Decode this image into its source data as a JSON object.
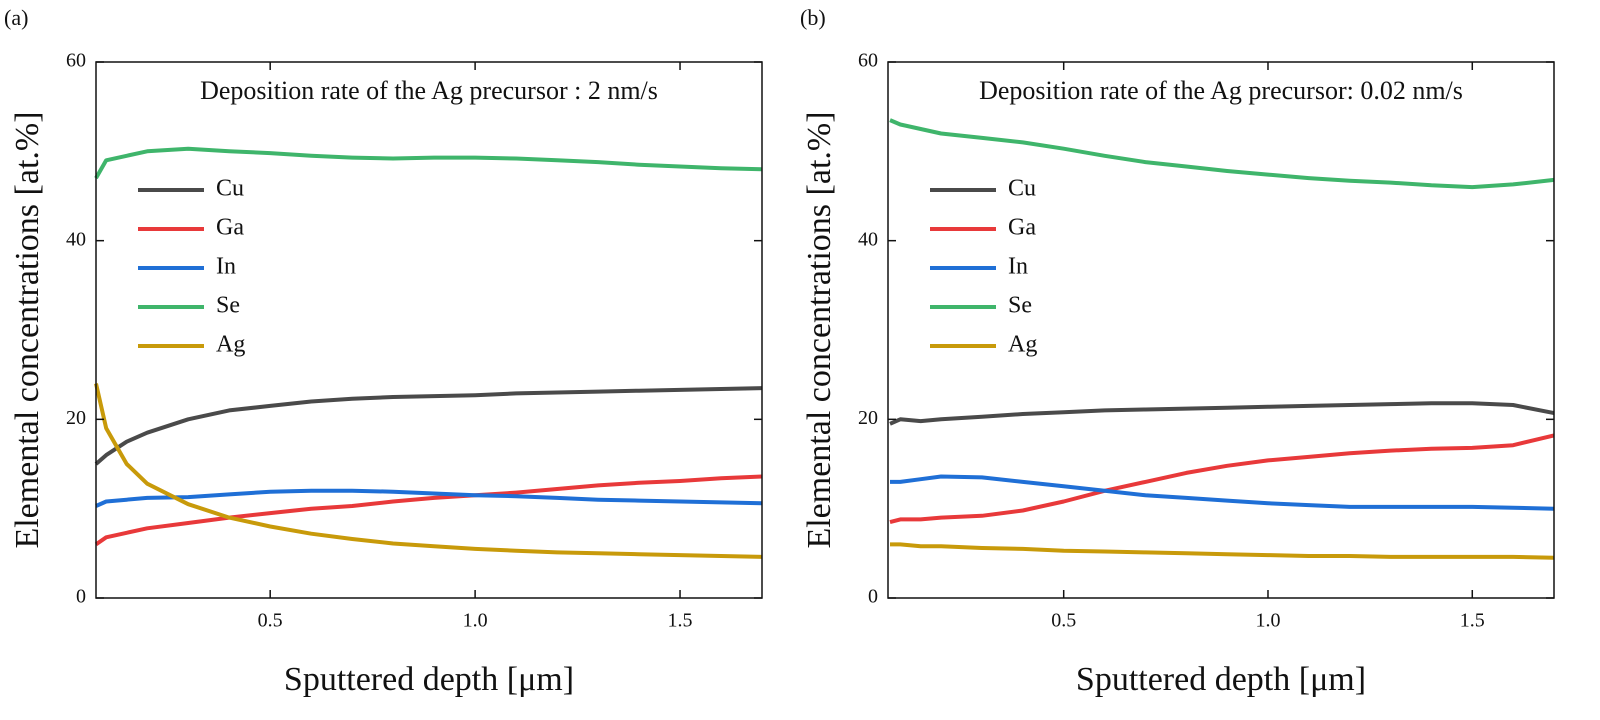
{
  "chart_data": [
    {
      "type": "line",
      "panel_label": "(a)",
      "annotation": "Deposition rate of the Ag precursor : 2 nm/s",
      "xlabel": "Sputtered depth [μm]",
      "ylabel": "Elemental concentrations [at.%]",
      "xlim": [
        0.075,
        1.7
      ],
      "ylim": [
        0,
        60
      ],
      "xticks": [
        0.5,
        {
          "value": 1.0,
          "label": "1.0"
        },
        1.5
      ],
      "yticks": [
        0,
        20,
        40,
        60
      ],
      "legend": "upper left",
      "x": [
        0.075,
        0.1,
        0.15,
        0.2,
        0.3,
        0.4,
        0.5,
        0.6,
        0.7,
        0.8,
        0.9,
        1.0,
        1.1,
        1.2,
        1.3,
        1.4,
        1.5,
        1.6,
        1.7
      ],
      "series": [
        {
          "name": "Cu",
          "color": "#4a4a4a",
          "values": [
            15,
            16,
            17.5,
            18.5,
            20,
            21,
            21.5,
            22,
            22.3,
            22.5,
            22.6,
            22.7,
            22.9,
            23,
            23.1,
            23.2,
            23.3,
            23.4,
            23.5
          ]
        },
        {
          "name": "Ga",
          "color": "#e8393a",
          "values": [
            6,
            6.8,
            7.3,
            7.8,
            8.4,
            9,
            9.5,
            10,
            10.3,
            10.8,
            11.2,
            11.5,
            11.8,
            12.2,
            12.6,
            12.9,
            13.1,
            13.4,
            13.6
          ]
        },
        {
          "name": "In",
          "color": "#1f6fd6",
          "values": [
            10.3,
            10.8,
            11,
            11.2,
            11.3,
            11.6,
            11.9,
            12,
            12,
            11.9,
            11.7,
            11.5,
            11.4,
            11.2,
            11,
            10.9,
            10.8,
            10.7,
            10.6
          ]
        },
        {
          "name": "Se",
          "color": "#3fb56b",
          "values": [
            47,
            49,
            49.5,
            50,
            50.3,
            50,
            49.8,
            49.5,
            49.3,
            49.2,
            49.3,
            49.3,
            49.2,
            49,
            48.8,
            48.5,
            48.3,
            48.1,
            48
          ]
        },
        {
          "name": "Ag",
          "color": "#c89a0a",
          "values": [
            24,
            19,
            15,
            12.8,
            10.5,
            9,
            8,
            7.2,
            6.6,
            6.1,
            5.8,
            5.5,
            5.3,
            5.1,
            5,
            4.9,
            4.8,
            4.7,
            4.6
          ]
        }
      ]
    },
    {
      "type": "line",
      "panel_label": "(b)",
      "annotation": "Deposition rate of the Ag precursor: 0.02 nm/s",
      "xlabel": "Sputtered depth [μm]",
      "ylabel": "Elemental concentrations [at.%]",
      "xlim": [
        0.07,
        1.7
      ],
      "ylim": [
        0,
        60
      ],
      "xticks": [
        0.5,
        {
          "value": 1.0,
          "label": "1.0"
        },
        1.5
      ],
      "yticks": [
        0,
        20,
        40,
        60
      ],
      "legend": "upper left",
      "x": [
        0.075,
        0.1,
        0.15,
        0.2,
        0.3,
        0.4,
        0.5,
        0.6,
        0.7,
        0.8,
        0.9,
        1.0,
        1.1,
        1.2,
        1.3,
        1.4,
        1.5,
        1.6,
        1.7
      ],
      "series": [
        {
          "name": "Cu",
          "color": "#4a4a4a",
          "values": [
            19.5,
            20,
            19.8,
            20,
            20.3,
            20.6,
            20.8,
            21,
            21.1,
            21.2,
            21.3,
            21.4,
            21.5,
            21.6,
            21.7,
            21.8,
            21.8,
            21.6,
            20.7
          ]
        },
        {
          "name": "Ga",
          "color": "#e8393a",
          "values": [
            8.5,
            8.8,
            8.8,
            9,
            9.2,
            9.8,
            10.8,
            12,
            13,
            14,
            14.8,
            15.4,
            15.8,
            16.2,
            16.5,
            16.7,
            16.8,
            17.1,
            18.2
          ]
        },
        {
          "name": "In",
          "color": "#1f6fd6",
          "values": [
            13,
            13,
            13.3,
            13.6,
            13.5,
            13,
            12.5,
            12,
            11.5,
            11.2,
            10.9,
            10.6,
            10.4,
            10.2,
            10.2,
            10.2,
            10.2,
            10.1,
            10
          ]
        },
        {
          "name": "Se",
          "color": "#3fb56b",
          "values": [
            53.5,
            53,
            52.5,
            52,
            51.5,
            51,
            50.3,
            49.5,
            48.8,
            48.3,
            47.8,
            47.4,
            47,
            46.7,
            46.5,
            46.2,
            46,
            46.3,
            46.8
          ]
        },
        {
          "name": "Ag",
          "color": "#c89a0a",
          "values": [
            6,
            6,
            5.8,
            5.8,
            5.6,
            5.5,
            5.3,
            5.2,
            5.1,
            5,
            4.9,
            4.8,
            4.7,
            4.7,
            4.6,
            4.6,
            4.6,
            4.6,
            4.5
          ]
        }
      ]
    }
  ]
}
